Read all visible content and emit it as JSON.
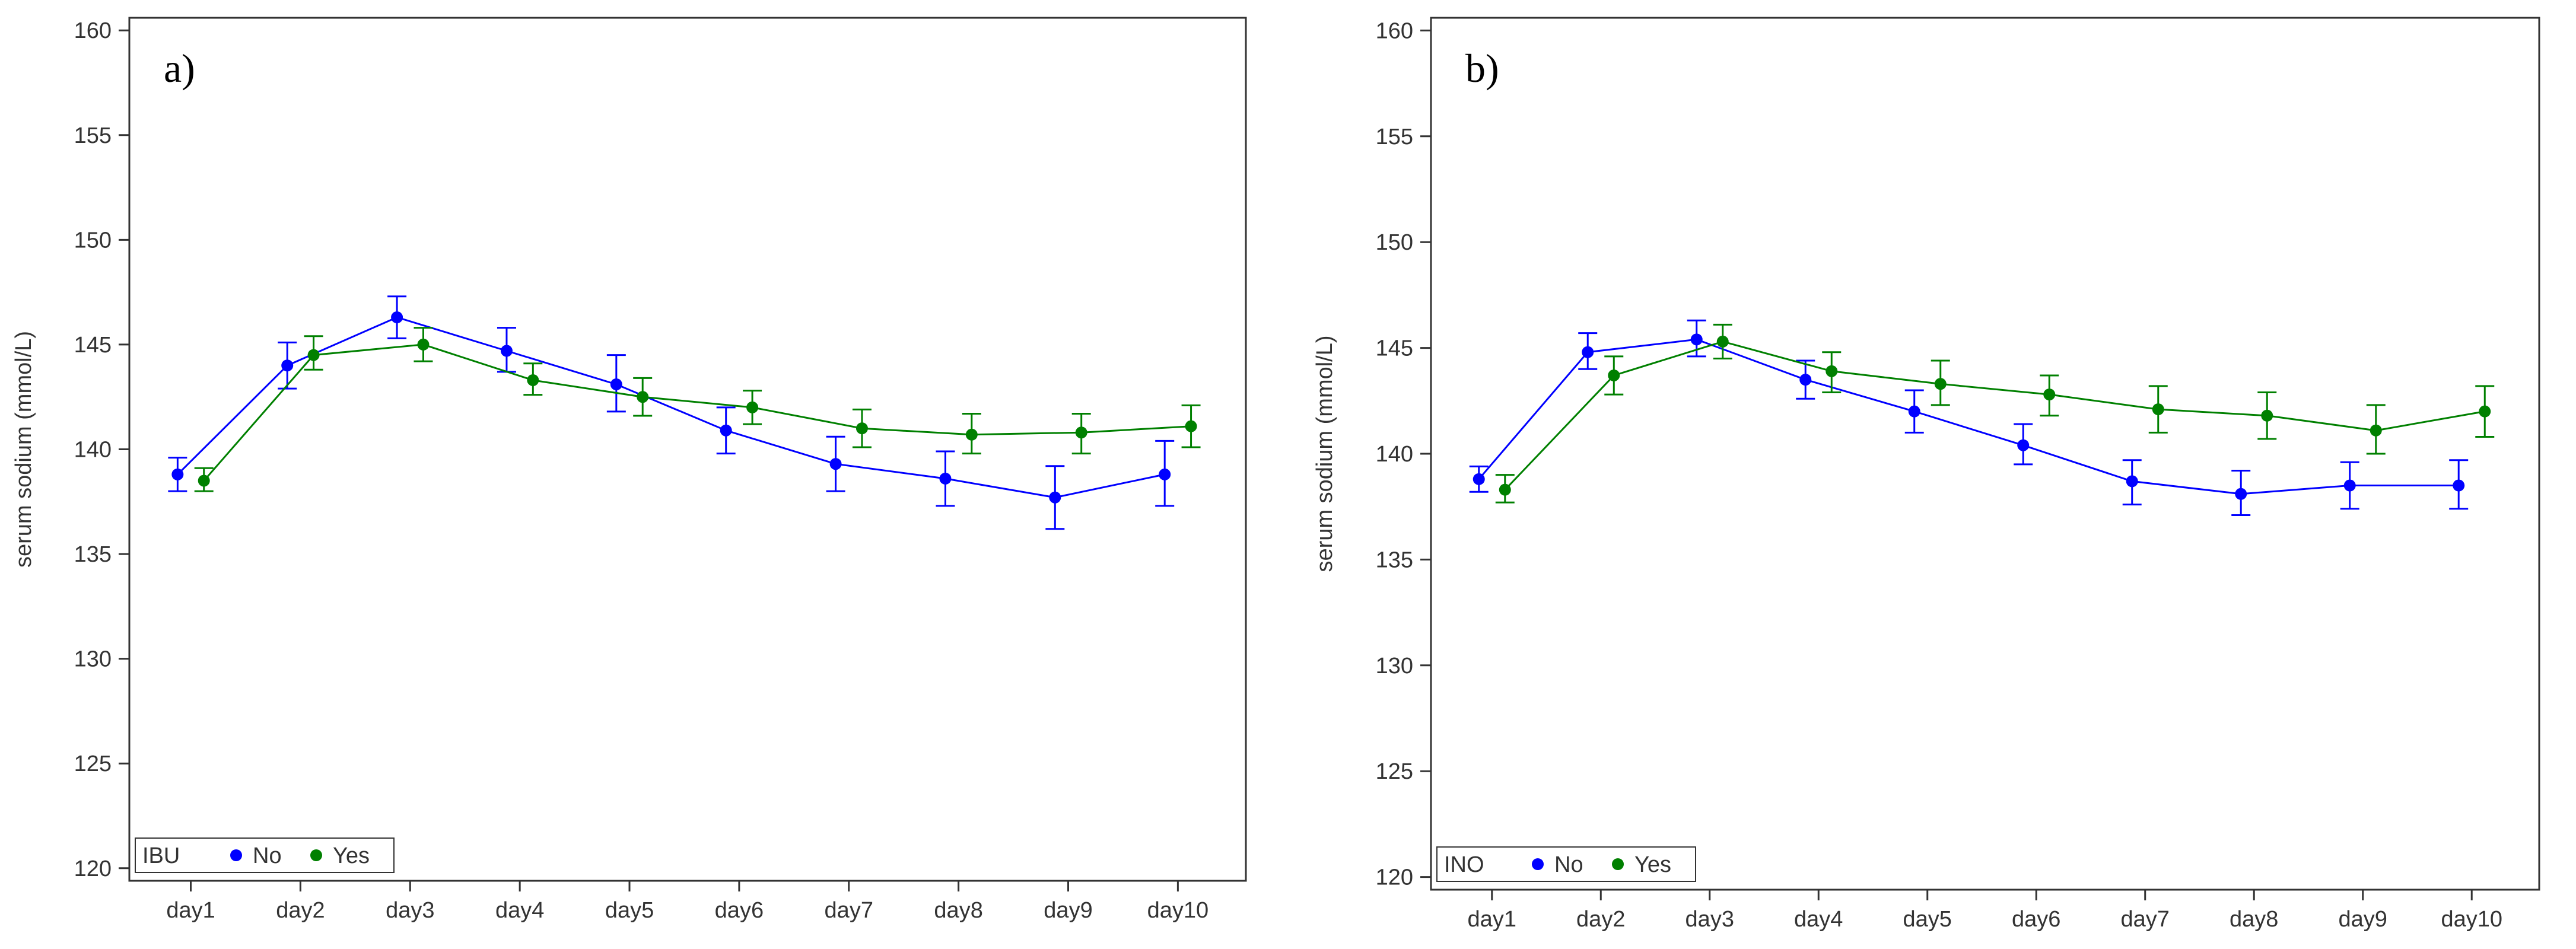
{
  "chart_data": [
    {
      "type": "line",
      "panel_label": "a)",
      "xlabel": "",
      "ylabel": "serum sodium (mmol/L)",
      "categories": [
        "day1",
        "day2",
        "day3",
        "day4",
        "day5",
        "day6",
        "day7",
        "day8",
        "day9",
        "day10"
      ],
      "ylim": [
        119.4,
        160.6
      ],
      "yticks": [
        120,
        125,
        130,
        135,
        140,
        145,
        150,
        155,
        160
      ],
      "grid": false,
      "legend": {
        "title": "IBU",
        "placement": "bottom-left"
      },
      "series": [
        {
          "name": "No",
          "color": "#0000ff",
          "values": [
            138.8,
            144.0,
            146.3,
            144.7,
            143.1,
            140.9,
            139.3,
            138.6,
            137.7,
            138.8
          ],
          "err_low": [
            138.0,
            142.9,
            145.3,
            143.7,
            141.8,
            139.8,
            138.0,
            137.3,
            136.2,
            137.3
          ],
          "err_high": [
            139.6,
            145.1,
            147.3,
            145.8,
            144.5,
            142.0,
            140.6,
            139.9,
            139.2,
            140.4
          ]
        },
        {
          "name": "Yes",
          "color": "#008000",
          "values": [
            138.5,
            144.5,
            145.0,
            143.3,
            142.5,
            142.0,
            141.0,
            140.7,
            140.8,
            141.1
          ],
          "err_low": [
            138.0,
            143.8,
            144.2,
            142.6,
            141.6,
            141.2,
            140.1,
            139.8,
            139.8,
            140.1
          ],
          "err_high": [
            139.1,
            145.4,
            145.8,
            144.1,
            143.4,
            142.8,
            141.9,
            141.7,
            141.7,
            142.1
          ]
        }
      ]
    },
    {
      "type": "line",
      "panel_label": "b)",
      "xlabel": "",
      "ylabel": "serum sodium (mmol/L)",
      "categories": [
        "day1",
        "day2",
        "day3",
        "day4",
        "day5",
        "day6",
        "day7",
        "day8",
        "day9",
        "day10"
      ],
      "ylim": [
        119.4,
        160.6
      ],
      "yticks": [
        120,
        125,
        130,
        135,
        140,
        145,
        150,
        155,
        160
      ],
      "grid": false,
      "legend": {
        "title": "INO",
        "placement": "bottom-left"
      },
      "series": [
        {
          "name": "No",
          "color": "#0000ff",
          "values": [
            138.8,
            144.8,
            145.4,
            143.5,
            142.0,
            140.4,
            138.7,
            138.1,
            138.5,
            138.5
          ],
          "err_low": [
            138.2,
            144.0,
            144.6,
            142.6,
            141.0,
            139.5,
            137.6,
            137.1,
            137.4,
            137.4
          ],
          "err_high": [
            139.4,
            145.7,
            146.3,
            144.4,
            143.0,
            141.4,
            139.7,
            139.2,
            139.6,
            139.7
          ]
        },
        {
          "name": "Yes",
          "color": "#008000",
          "values": [
            138.3,
            143.7,
            145.3,
            143.9,
            143.3,
            142.8,
            142.1,
            141.8,
            141.1,
            142.0
          ],
          "err_low": [
            137.7,
            142.8,
            144.5,
            142.9,
            142.3,
            141.8,
            141.0,
            140.7,
            140.0,
            140.8
          ],
          "err_high": [
            139.0,
            144.6,
            146.1,
            144.8,
            144.4,
            143.7,
            143.2,
            142.9,
            142.3,
            143.2
          ]
        }
      ]
    }
  ]
}
